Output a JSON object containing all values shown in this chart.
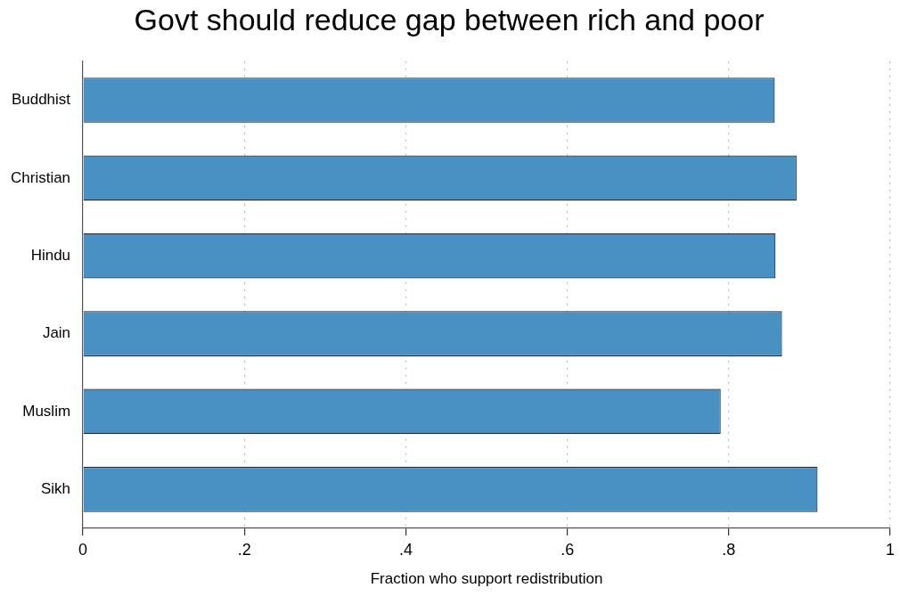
{
  "chart_data": {
    "type": "bar",
    "orientation": "horizontal",
    "title": "Govt should reduce gap between rich and poor",
    "xlabel": "Fraction who support redistribution",
    "categories": [
      "Buddhist",
      "Christian",
      "Hindu",
      "Jain",
      "Muslim",
      "Sikh"
    ],
    "values": [
      0.857,
      0.884,
      0.858,
      0.866,
      0.79,
      0.91
    ],
    "color": "#4a91c3",
    "xlim": [
      0,
      1
    ],
    "xticks": [
      0,
      {
        "value": 0.2,
        "label": ".2"
      },
      {
        "value": 0.4,
        "label": ".4"
      },
      {
        "value": 0.6,
        "label": ".6"
      },
      {
        "value": 0.8,
        "label": ".8"
      },
      1
    ],
    "grid": "x"
  }
}
